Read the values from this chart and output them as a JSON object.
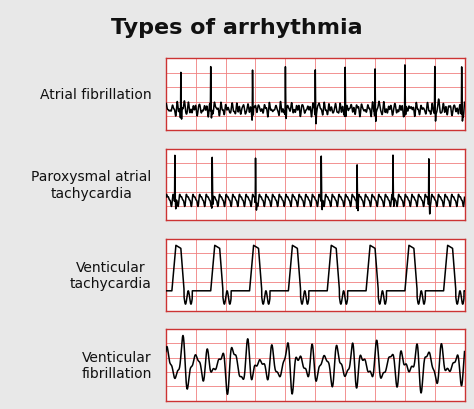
{
  "title": "Types of arrhythmia",
  "title_fontsize": 16,
  "title_fontweight": "bold",
  "background_color": "#e8e8e8",
  "ecg_bg_color": "#ffffff",
  "grid_color": "#f08080",
  "ecg_line_color": "#000000",
  "label_fontsize": 10,
  "labels": [
    "Atrial fibrillation",
    "Paroxysmal atrial\ntachycardia",
    "Venticular\ntachycardia",
    "Venticular\nfibrillation"
  ],
  "fig_width": 4.74,
  "fig_height": 4.1,
  "dpi": 100
}
